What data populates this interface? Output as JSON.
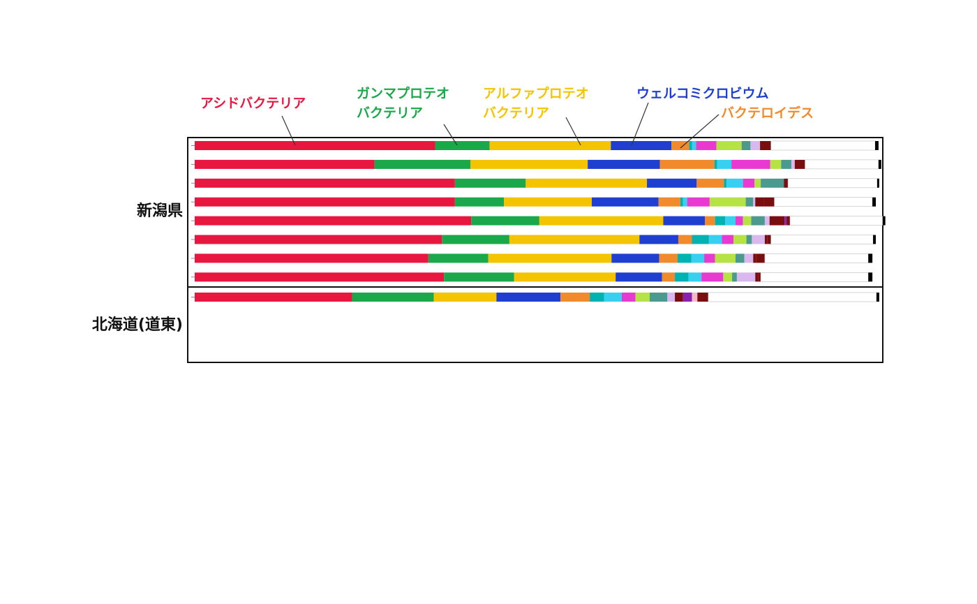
{
  "chart_data": {
    "type": "bar",
    "orientation": "horizontal",
    "stacked": true,
    "xlim": [
      0,
      100
    ],
    "legend_labels": [
      {
        "text": [
          "アシドバクテリア"
        ],
        "color": "#e8173f",
        "series": "アシドバクテリア"
      },
      {
        "text": [
          "ガンマプロテオ",
          "バクテリア"
        ],
        "color": "#1aa84a",
        "series": "ガンマプロテオバクテリア"
      },
      {
        "text": [
          "アルファプロテオ",
          "バクテリア"
        ],
        "color": "#f5c400",
        "series": "アルファプロテオバクテリア"
      },
      {
        "text": [
          "ウェルコミクロビウム"
        ],
        "color": "#1f3fd0",
        "series": "ウェルコミクロビウム"
      },
      {
        "text": [
          "バクテロイデス"
        ],
        "color": "#f08a2a",
        "series": "バクテロイデス"
      }
    ],
    "groups": [
      {
        "label": "新潟県",
        "rows": [
          [
            35.3,
            8.0,
            17.8,
            8.9,
            2.6,
            0.4,
            0.6,
            3.0,
            3.7,
            1.3,
            1.4,
            1.6,
            15.3,
            0.5
          ],
          [
            26.4,
            14.1,
            17.2,
            10.6,
            8.0,
            0.4,
            2.1,
            5.7,
            1.6,
            1.5,
            0.5,
            1.5,
            10.8,
            0.4
          ],
          [
            38.2,
            10.4,
            17.8,
            7.3,
            4.0,
            0.4,
            2.4,
            1.7,
            0.9,
            3.4,
            0.6,
            13.1,
            0.3
          ],
          [
            38.2,
            7.2,
            12.9,
            9.8,
            3.2,
            0.4,
            0.6,
            3.3,
            5.3,
            1.1,
            0.3,
            1.3,
            1.5,
            14.4,
            0.5
          ],
          [
            40.6,
            10.0,
            18.2,
            6.1,
            1.5,
            1.5,
            1.5,
            1.1,
            1.2,
            2.0,
            0.7,
            2.2,
            0.3,
            0.5,
            13.6,
            0.4
          ],
          [
            36.3,
            9.9,
            19.1,
            5.7,
            2.0,
            2.5,
            1.9,
            1.7,
            1.9,
            0.8,
            1.9,
            0.4,
            0.5,
            15.0,
            0.4
          ],
          [
            34.3,
            8.8,
            18.1,
            7.0,
            2.7,
            2.0,
            1.9,
            1.6,
            3.0,
            1.3,
            1.3,
            0.4,
            1.3,
            15.2,
            0.6
          ],
          [
            36.6,
            10.3,
            14.9,
            6.8,
            1.9,
            2.0,
            1.9,
            3.2,
            1.3,
            0.7,
            2.7,
            0.4,
            0.4,
            15.8,
            0.6
          ]
        ]
      },
      {
        "label": "北海道(道東)",
        "rows": [
          [
            23.1,
            12.0,
            9.2,
            9.4,
            4.3,
            2.1,
            2.6,
            2.0,
            2.1,
            2.6,
            1.1,
            1.2,
            1.3,
            0.8,
            1.6,
            24.7,
            0.4
          ]
        ]
      }
    ],
    "palette": [
      "#e8173f",
      "#1aa84a",
      "#f5c400",
      "#1f3fd0",
      "#f08a2a",
      "#00b3b3",
      "#38d0f0",
      "#e83ad0",
      "#b5e346",
      "#4b9a8f",
      "#d8b8ee",
      "#7a0d0d",
      "#ffffff",
      "#000000"
    ],
    "palette_extra": [
      "#8a21b0",
      "#f5b8c8",
      "#a3561e",
      "#fff2c0",
      "#cccccc"
    ]
  }
}
